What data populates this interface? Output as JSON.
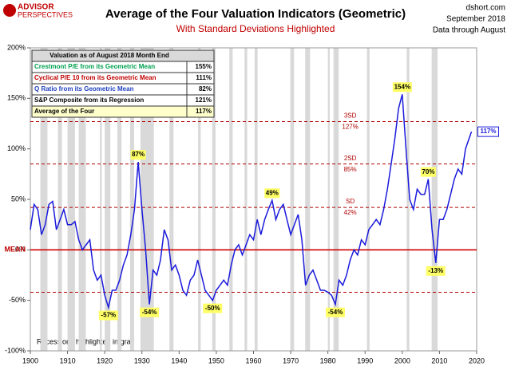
{
  "chart_data": {
    "type": "line",
    "brand": [
      "ADVISOR",
      "PERSPECTIVES"
    ],
    "title": "Average of the Four Valuation Indicators (Geometric)",
    "subtitle": "With Standard Deviations Highlighted",
    "source": [
      "dshort.com",
      "September 2018",
      "Data through August"
    ],
    "note": "Recessions highlighted in gray",
    "color": "#1a1adc",
    "xlim": [
      1900,
      2020
    ],
    "xticks": [
      1900,
      1910,
      1920,
      1930,
      1940,
      1950,
      1960,
      1970,
      1980,
      1990,
      2000,
      2010,
      2020
    ],
    "ylim": [
      -100,
      200
    ],
    "yticks": [
      {
        "value": -100,
        "label": "-100%"
      },
      {
        "value": -50,
        "label": "-50%"
      },
      {
        "value": 0,
        "label": "0%"
      },
      {
        "value": 50,
        "label": "50%"
      },
      {
        "value": 100,
        "label": "100%"
      },
      {
        "value": 150,
        "label": "150%"
      },
      {
        "value": 200,
        "label": "200%"
      }
    ],
    "x": [
      1900,
      1901,
      1902,
      1903,
      1904,
      1905,
      1906,
      1907,
      1908,
      1909,
      1910,
      1911,
      1912,
      1913,
      1914,
      1915,
      1916,
      1917,
      1918,
      1919,
      1920,
      1921,
      1922,
      1923,
      1924,
      1925,
      1926,
      1927,
      1928,
      1929,
      1930,
      1931,
      1932,
      1933,
      1934,
      1935,
      1936,
      1937,
      1938,
      1939,
      1940,
      1941,
      1942,
      1943,
      1944,
      1945,
      1946,
      1947,
      1948,
      1949,
      1950,
      1951,
      1952,
      1953,
      1954,
      1955,
      1956,
      1957,
      1958,
      1959,
      1960,
      1961,
      1962,
      1963,
      1964,
      1965,
      1966,
      1967,
      1968,
      1969,
      1970,
      1971,
      1972,
      1973,
      1974,
      1975,
      1976,
      1977,
      1978,
      1979,
      1980,
      1981,
      1982,
      1983,
      1984,
      1985,
      1986,
      1987,
      1988,
      1989,
      1990,
      1991,
      1992,
      1993,
      1994,
      1995,
      1996,
      1997,
      1998,
      1999,
      2000,
      2001,
      2002,
      2003,
      2004,
      2005,
      2006,
      2007,
      2008,
      2009,
      2010,
      2011,
      2012,
      2013,
      2014,
      2015,
      2016,
      2017,
      2018.6
    ],
    "values": [
      20,
      45,
      40,
      15,
      25,
      45,
      48,
      20,
      30,
      40,
      25,
      25,
      28,
      10,
      0,
      5,
      10,
      -20,
      -30,
      -25,
      -45,
      -57,
      -40,
      -40,
      -30,
      -15,
      -5,
      15,
      40,
      87,
      40,
      0,
      -54,
      -20,
      -25,
      -10,
      20,
      10,
      -20,
      -15,
      -25,
      -40,
      -45,
      -30,
      -25,
      -10,
      -25,
      -40,
      -45,
      -50,
      -40,
      -35,
      -30,
      -35,
      -15,
      0,
      5,
      -5,
      5,
      15,
      10,
      30,
      15,
      30,
      40,
      49,
      30,
      40,
      45,
      30,
      15,
      25,
      35,
      10,
      -35,
      -25,
      -20,
      -30,
      -40,
      -40,
      -42,
      -45,
      -54,
      -30,
      -35,
      -25,
      -10,
      0,
      -5,
      10,
      5,
      20,
      25,
      30,
      25,
      40,
      60,
      85,
      110,
      140,
      154,
      100,
      50,
      40,
      60,
      55,
      55,
      70,
      20,
      -13,
      30,
      30,
      40,
      55,
      70,
      80,
      75,
      100,
      117
    ],
    "recessions": [
      [
        1902.7,
        1904.6
      ],
      [
        1907.4,
        1908.5
      ],
      [
        1910,
        1912
      ],
      [
        1913,
        1914.9
      ],
      [
        1918.7,
        1919.2
      ],
      [
        1920,
        1921.5
      ],
      [
        1923.4,
        1924.5
      ],
      [
        1926.8,
        1927.9
      ],
      [
        1929.6,
        1933.2
      ],
      [
        1937.4,
        1938.5
      ],
      [
        1945.1,
        1945.8
      ],
      [
        1948.9,
        1949.8
      ],
      [
        1953.5,
        1954.4
      ],
      [
        1957.6,
        1958.3
      ],
      [
        1960.3,
        1961.1
      ],
      [
        1969.9,
        1970.9
      ],
      [
        1973.9,
        1975.2
      ],
      [
        1980,
        1980.5
      ],
      [
        1981.5,
        1982.9
      ],
      [
        1990.5,
        1991.2
      ],
      [
        2001.2,
        2001.9
      ],
      [
        2007.9,
        2009.5
      ]
    ],
    "reference_lines": [
      {
        "name": "3SD",
        "value": 127,
        "label": "127%"
      },
      {
        "name": "2SD",
        "value": 85,
        "label": "85%"
      },
      {
        "name": "SD",
        "value": 42,
        "label": "42%"
      },
      {
        "name": "MEAN",
        "value": 0
      },
      {
        "value": -42
      }
    ],
    "annotations": [
      {
        "x": 1929,
        "value": 87,
        "label": "87%"
      },
      {
        "x": 1921,
        "value": -57,
        "label": "-57%"
      },
      {
        "x": 1932,
        "value": -54,
        "label": "-54%"
      },
      {
        "x": 1949,
        "value": -50,
        "label": "-50%"
      },
      {
        "x": 1965,
        "value": 49,
        "label": "49%"
      },
      {
        "x": 1982,
        "value": -54,
        "label": "-54%"
      },
      {
        "x": 2000,
        "value": 154,
        "label": "154%"
      },
      {
        "x": 2007,
        "value": 70,
        "label": "70%"
      },
      {
        "x": 2009,
        "value": -13,
        "label": "-13%"
      }
    ],
    "end_label": {
      "value": 117,
      "label": "117%"
    },
    "table": {
      "header": [
        "Valuation as of August 2018  Month End"
      ],
      "rows": [
        [
          "Crestmont P/E from its Geometric Mean",
          "155%"
        ],
        [
          "Cyclical P/E 10 from its Geometric Mean",
          "111%"
        ],
        [
          "Q Ratio from its Geometric Mean",
          "82%"
        ],
        [
          "S&P Composite from its Regression",
          "121%"
        ],
        [
          "Average of the Four",
          "117%"
        ]
      ],
      "colors": [
        "#00a050",
        "#c00000",
        "#2040c0",
        "#000000",
        "#000000"
      ]
    }
  }
}
